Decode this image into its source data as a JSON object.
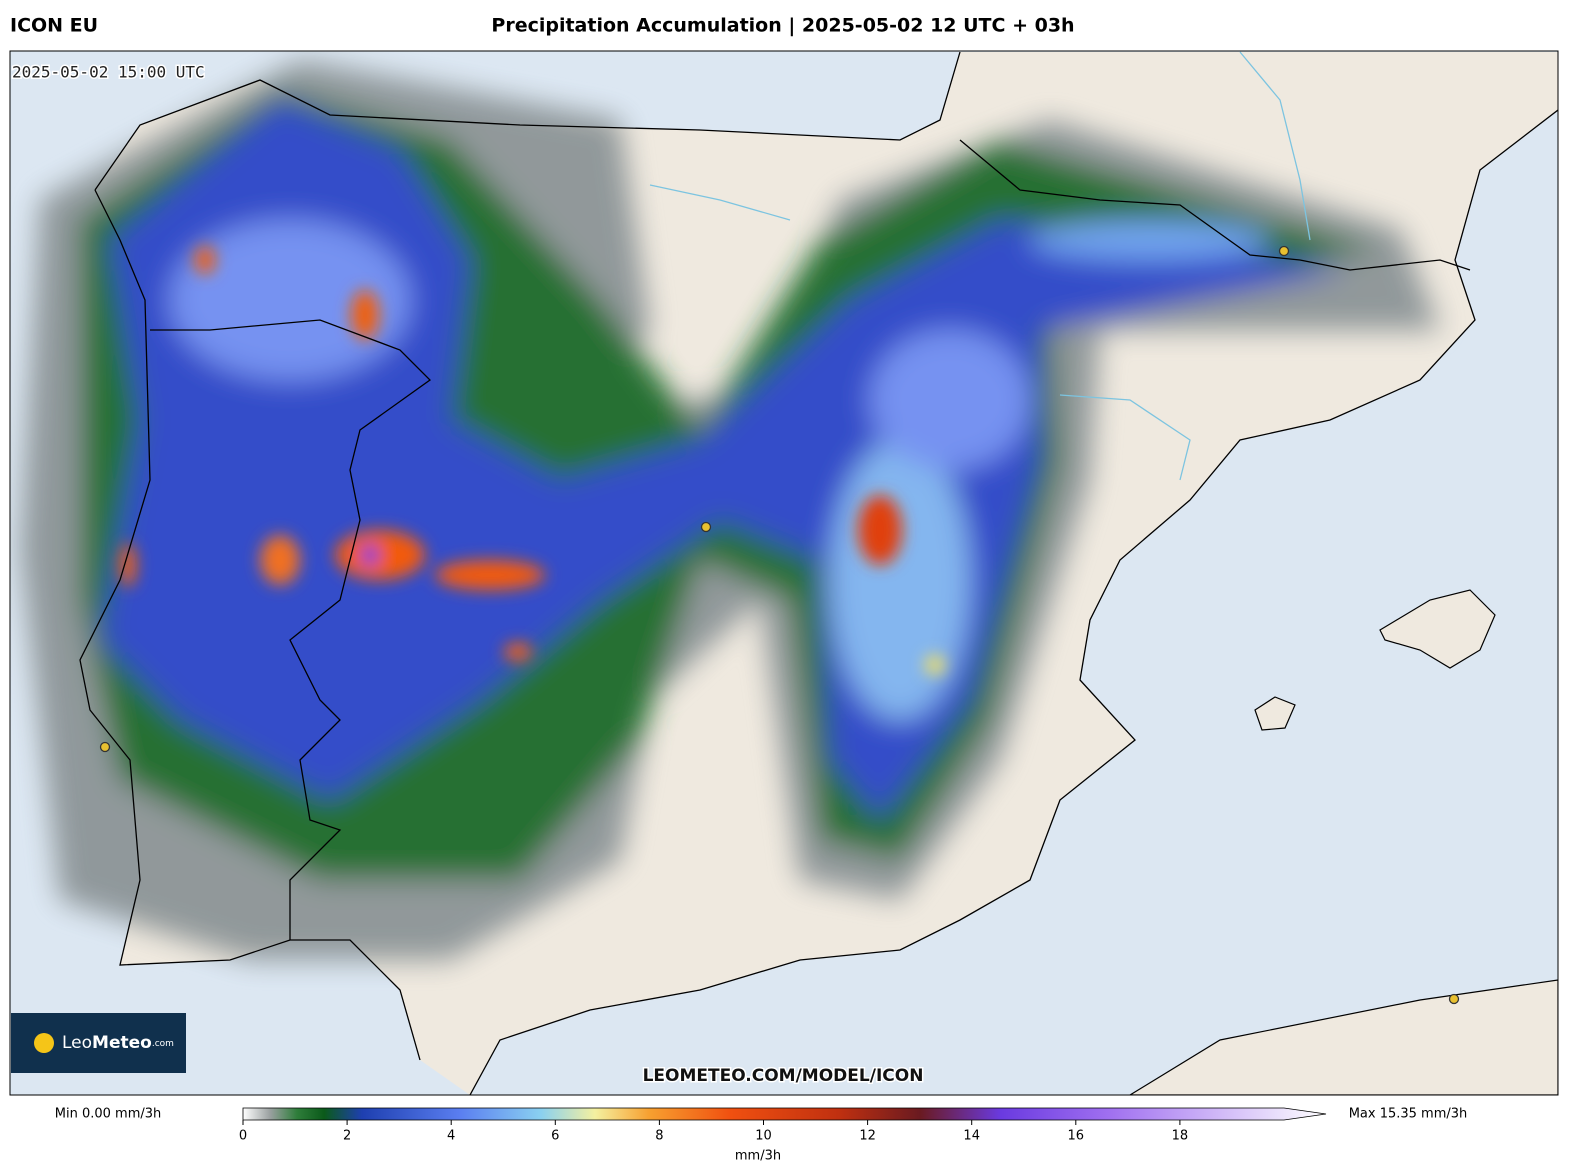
{
  "header": {
    "model": "ICON EU",
    "title": "Precipitation Accumulation | 2025-05-02 12 UTC + 03h"
  },
  "map": {
    "timestamp": "2025-05-02 15:00 UTC",
    "watermark": "LEOMETEO.COM/MODEL/ICON",
    "logo": {
      "brand": "Leo",
      "brand_bold": "Meteo",
      "suffix": ".com"
    }
  },
  "colorbar": {
    "min_label": "Min 0.00 mm/3h",
    "max_label": "Max 15.35 mm/3h",
    "unit": "mm/3h",
    "range": [
      0,
      20
    ],
    "ticks": [
      0,
      2,
      4,
      6,
      8,
      10,
      12,
      14,
      16,
      18
    ],
    "stops": [
      {
        "value": 0,
        "color": "#ffffff"
      },
      {
        "value": 0.5,
        "color": "#9aa0a0"
      },
      {
        "value": 1,
        "color": "#2e7d3a"
      },
      {
        "value": 1.5,
        "color": "#0b5a1a"
      },
      {
        "value": 2.2,
        "color": "#1e3fb0"
      },
      {
        "value": 4,
        "color": "#5a7ef0"
      },
      {
        "value": 5.5,
        "color": "#8ad0f0"
      },
      {
        "value": 6.5,
        "color": "#f4f0a0"
      },
      {
        "value": 7.5,
        "color": "#f7a030"
      },
      {
        "value": 9,
        "color": "#f05010"
      },
      {
        "value": 11,
        "color": "#c03010"
      },
      {
        "value": 12.5,
        "color": "#6a1a20"
      },
      {
        "value": 14,
        "color": "#6a3ae0"
      },
      {
        "value": 16,
        "color": "#a070f0"
      },
      {
        "value": 20,
        "color": "#ffffff"
      }
    ]
  }
}
